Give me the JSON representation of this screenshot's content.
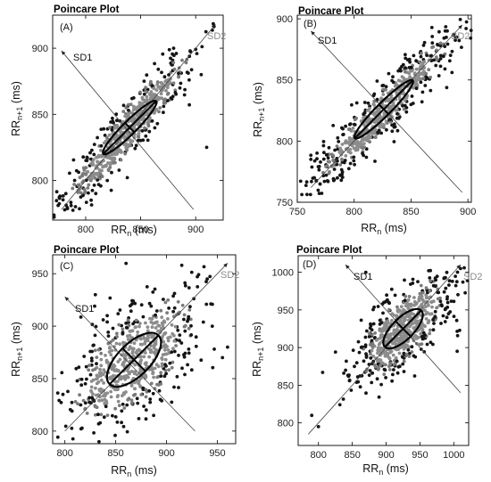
{
  "chart_data": [
    {
      "type": "scatter",
      "title": "Poincare Plot",
      "panel_label": "(A)",
      "xlabel": "RR",
      "xlabel_sub": "n",
      "xlabel_unit": " (ms)",
      "ylabel": "RR",
      "ylabel_sub": "n+1",
      "ylabel_unit": " (ms)",
      "xlim": [
        770,
        925
      ],
      "ylim": [
        770,
        925
      ],
      "xticks": [
        800,
        850,
        900
      ],
      "yticks": [
        800,
        850,
        900
      ],
      "mean": 840,
      "sd1": 6,
      "sd2": 34,
      "sd_axes": {
        "sd2_from": [
          778,
          778
        ],
        "sd2_to": [
          918,
          918
        ],
        "sd1_from": [
          778,
          898
        ],
        "sd1_to": [
          898,
          778
        ]
      },
      "sd1_label": "SD1",
      "sd2_label": "SD2",
      "grid": false,
      "outliers": [
        [
          910,
          825
        ],
        [
          895,
          898
        ],
        [
          805,
          785
        ],
        [
          782,
          790
        ],
        [
          790,
          800
        ],
        [
          905,
          880
        ],
        [
          880,
          900
        ]
      ]
    },
    {
      "type": "scatter",
      "title": "Poincare Plot",
      "panel_label": "(B)",
      "xlabel": "RR",
      "xlabel_sub": "n",
      "xlabel_unit": " (ms)",
      "ylabel": "RR",
      "ylabel_sub": "n+1",
      "ylabel_unit": " (ms)",
      "xlim": [
        750,
        903
      ],
      "ylim": [
        750,
        903
      ],
      "xticks": [
        750,
        800,
        850,
        900
      ],
      "yticks": [
        750,
        800,
        850,
        900
      ],
      "mean": 826,
      "sd1": 6,
      "sd2": 36,
      "sd_axes": {
        "sd2_from": [
          762,
          762
        ],
        "sd2_to": [
          895,
          895
        ],
        "sd1_from": [
          762,
          890
        ],
        "sd1_to": [
          895,
          758
        ]
      },
      "sd1_label": "SD1",
      "sd2_label": "SD2",
      "grid": false,
      "outliers": [
        [
          765,
          770
        ],
        [
          770,
          765
        ],
        [
          880,
          890
        ],
        [
          890,
          885
        ],
        [
          790,
          810
        ]
      ]
    },
    {
      "type": "scatter",
      "title": "Poincare Plot",
      "panel_label": "(C)",
      "xlabel": "RR",
      "xlabel_sub": "n",
      "xlabel_unit": " (ms)",
      "ylabel": "RR",
      "ylabel_sub": "n+1",
      "ylabel_unit": " (ms)",
      "xlim": [
        788,
        968
      ],
      "ylim": [
        788,
        968
      ],
      "xticks": [
        800,
        850,
        900,
        950
      ],
      "yticks": [
        800,
        850,
        900,
        950
      ],
      "mean": 868,
      "sd1": 16,
      "sd2": 34,
      "sd_axes": {
        "sd2_from": [
          800,
          800
        ],
        "sd2_to": [
          960,
          960
        ],
        "sd1_from": [
          800,
          928
        ],
        "sd1_to": [
          928,
          800
        ]
      },
      "sd1_label": "SD1",
      "sd2_label": "SD2",
      "grid": false,
      "outliers": [
        [
          915,
          958
        ],
        [
          940,
          945
        ],
        [
          955,
          870
        ],
        [
          830,
          930
        ],
        [
          945,
          900
        ],
        [
          960,
          880
        ]
      ]
    },
    {
      "type": "scatter",
      "title": "Poincare Plot",
      "panel_label": "(D)",
      "xlabel": "RR",
      "xlabel_sub": "n",
      "xlabel_unit": " (ms)",
      "ylabel": "RR",
      "ylabel_sub": "n+1",
      "ylabel_unit": " (ms)",
      "xlim": [
        770,
        1022
      ],
      "ylim": [
        770,
        1022
      ],
      "xticks": [
        800,
        850,
        900,
        950,
        1000
      ],
      "yticks": [
        800,
        850,
        900,
        950,
        1000
      ],
      "mean": 925,
      "sd1": 16,
      "sd2": 38,
      "sd_axes": {
        "sd2_from": [
          785,
          785
        ],
        "sd2_to": [
          1010,
          1010
        ],
        "sd1_from": [
          840,
          1010
        ],
        "sd1_to": [
          1010,
          840
        ]
      },
      "sd1_label": "SD1",
      "sd2_label": "SD2",
      "grid": false,
      "outliers": [
        [
          790,
          810
        ],
        [
          800,
          795
        ],
        [
          1010,
          1005
        ],
        [
          1005,
          895
        ],
        [
          870,
          1000
        ],
        [
          840,
          870
        ]
      ]
    }
  ]
}
